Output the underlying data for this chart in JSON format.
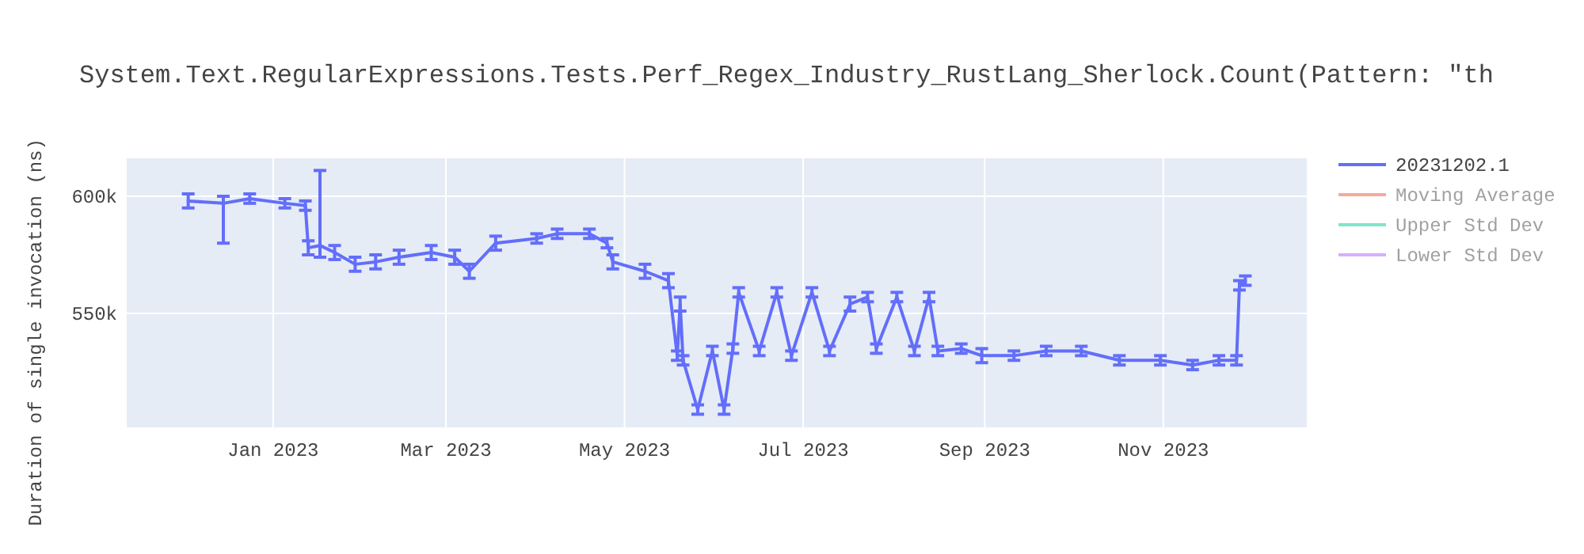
{
  "chart_data": {
    "type": "line",
    "title": "System.Text.RegularExpressions.Tests.Perf_Regex_Industry_RustLang_Sherlock.Count(Pattern: \"th",
    "ylabel": "Duration of single invocation (ns)",
    "x": [
      "2022-12-03",
      "2022-12-15",
      "2022-12-24",
      "2023-01-05",
      "2023-01-12",
      "2023-01-13",
      "2023-01-17",
      "2023-01-22",
      "2023-01-29",
      "2023-02-05",
      "2023-02-13",
      "2023-02-24",
      "2023-03-04",
      "2023-03-09",
      "2023-03-18",
      "2023-04-01",
      "2023-04-08",
      "2023-04-19",
      "2023-04-25",
      "2023-04-27",
      "2023-05-08",
      "2023-05-16",
      "2023-05-19",
      "2023-05-20",
      "2023-05-21",
      "2023-05-26",
      "2023-05-31",
      "2023-06-04",
      "2023-06-07",
      "2023-06-09",
      "2023-06-16",
      "2023-06-22",
      "2023-06-27",
      "2023-07-04",
      "2023-07-10",
      "2023-07-17",
      "2023-07-23",
      "2023-07-26",
      "2023-08-02",
      "2023-08-08",
      "2023-08-13",
      "2023-08-16",
      "2023-08-24",
      "2023-08-31",
      "2023-09-11",
      "2023-09-22",
      "2023-10-04",
      "2023-10-17",
      "2023-10-31",
      "2023-11-11",
      "2023-11-20",
      "2023-11-26",
      "2023-11-27",
      "2023-11-29"
    ],
    "series": [
      {
        "name": "20231202.1",
        "color": "#636efa",
        "values": [
          598000,
          597000,
          599000,
          597000,
          596000,
          578000,
          579000,
          576000,
          571000,
          572000,
          574000,
          576000,
          574000,
          568000,
          580000,
          582000,
          584000,
          584000,
          580000,
          572000,
          568000,
          564000,
          532000,
          554000,
          530000,
          509000,
          534000,
          509000,
          535000,
          559000,
          534000,
          559000,
          532000,
          559000,
          534000,
          554000,
          557000,
          535000,
          557000,
          534000,
          557000,
          534000,
          535000,
          532000,
          532000,
          534000,
          534000,
          530000,
          530000,
          528000,
          530000,
          530000,
          562000,
          564000
        ],
        "errors": [
          3000,
          [
            580000,
            600000
          ],
          2000,
          2000,
          2000,
          3000,
          [
            574000,
            611000
          ],
          3000,
          3000,
          3000,
          3000,
          3000,
          3000,
          3000,
          3000,
          2000,
          2000,
          2000,
          2000,
          3000,
          3000,
          3000,
          2000,
          3000,
          2000,
          2000,
          2000,
          2000,
          2000,
          2000,
          2000,
          2000,
          2000,
          2000,
          2000,
          3000,
          2000,
          2000,
          2000,
          2000,
          2000,
          2000,
          2000,
          3000,
          2000,
          2000,
          2000,
          2000,
          2000,
          2000,
          2000,
          2000,
          2000,
          2000
        ]
      },
      {
        "name": "Moving Average",
        "color": "#ef553b",
        "values": [
          null,
          null,
          null,
          null,
          null,
          null,
          null,
          null,
          null,
          null,
          null,
          null,
          null,
          null,
          null,
          null,
          null,
          null,
          null,
          null,
          null,
          null,
          null,
          null,
          null,
          null,
          null,
          null,
          null,
          null,
          null,
          null,
          null,
          null,
          null,
          null,
          null,
          null,
          null,
          null,
          null,
          null,
          null,
          null,
          null,
          null,
          null,
          null,
          null,
          null,
          null,
          null,
          null,
          null
        ]
      },
      {
        "name": "Upper Std Dev",
        "color": "#00cc96",
        "values": [
          null,
          null,
          null,
          null,
          null,
          null,
          null,
          null,
          null,
          null,
          null,
          null,
          null,
          null,
          null,
          null,
          null,
          null,
          null,
          null,
          null,
          null,
          null,
          null,
          null,
          null,
          null,
          null,
          null,
          null,
          null,
          null,
          null,
          null,
          null,
          null,
          null,
          null,
          null,
          null,
          null,
          null,
          null,
          null,
          null,
          null,
          null,
          null,
          null,
          null,
          null,
          null,
          null,
          null
        ]
      },
      {
        "name": "Lower Std Dev",
        "color": "#ab63fa",
        "values": [
          null,
          null,
          null,
          null,
          null,
          null,
          null,
          null,
          null,
          null,
          null,
          null,
          null,
          null,
          null,
          null,
          null,
          null,
          null,
          null,
          null,
          null,
          null,
          null,
          null,
          null,
          null,
          null,
          null,
          null,
          null,
          null,
          null,
          null,
          null,
          null,
          null,
          null,
          null,
          null,
          null,
          null,
          null,
          null,
          null,
          null,
          null,
          null,
          null,
          null,
          null,
          null,
          null,
          null
        ]
      }
    ],
    "xlim": [
      "2022-11-12",
      "2023-12-20"
    ],
    "xticks": [
      {
        "value": "2023-01",
        "label": "Jan 2023"
      },
      {
        "value": "2023-03",
        "label": "Mar 2023"
      },
      {
        "value": "2023-05",
        "label": "May 2023"
      },
      {
        "value": "2023-07",
        "label": "Jul 2023"
      },
      {
        "value": "2023-09",
        "label": "Sep 2023"
      },
      {
        "value": "2023-11",
        "label": "Nov 2023"
      }
    ],
    "ylim": [
      501400,
      616200
    ],
    "yticks": [
      {
        "value": 550000,
        "label": "550k"
      },
      {
        "value": 600000,
        "label": "600k"
      }
    ],
    "grid": true,
    "legend": "top right",
    "line_style": "solid",
    "marker": "none"
  }
}
